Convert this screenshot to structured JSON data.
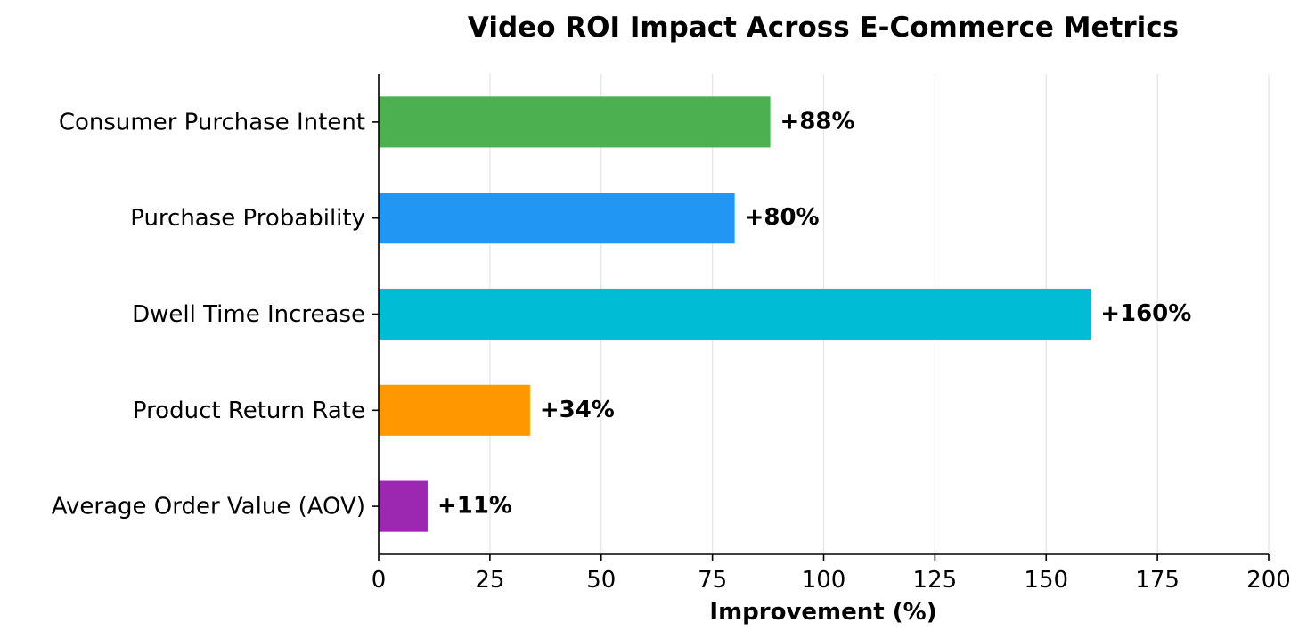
{
  "chart_data": {
    "type": "bar",
    "orientation": "horizontal",
    "title": "Video ROI Impact Across E-Commerce Metrics",
    "xlabel": "Improvement (%)",
    "ylabel": "",
    "xlim": [
      0,
      200
    ],
    "xticks": [
      0,
      25,
      50,
      75,
      100,
      125,
      150,
      175,
      200
    ],
    "grid": "x-vertical",
    "categories": [
      "Consumer Purchase Intent",
      "Purchase Probability",
      "Dwell Time Increase",
      "Product Return Rate",
      "Average Order Value (AOV)"
    ],
    "values": [
      88,
      80,
      160,
      34,
      11
    ],
    "data_labels": [
      "+88%",
      "+80%",
      "+160%",
      "+34%",
      "+11%"
    ],
    "colors": [
      "#4caf50",
      "#2196f3",
      "#00bcd4",
      "#ff9800",
      "#9c27b0"
    ]
  }
}
